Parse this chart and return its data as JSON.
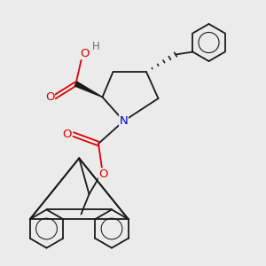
{
  "bg_color": "#ebebeb",
  "bond_color": "#1a1a1a",
  "atom_colors": {
    "O": "#dd0000",
    "N": "#0000cc",
    "H": "#607080",
    "C": "#1a1a1a"
  },
  "figsize": [
    3.0,
    3.0
  ],
  "dpi": 100
}
